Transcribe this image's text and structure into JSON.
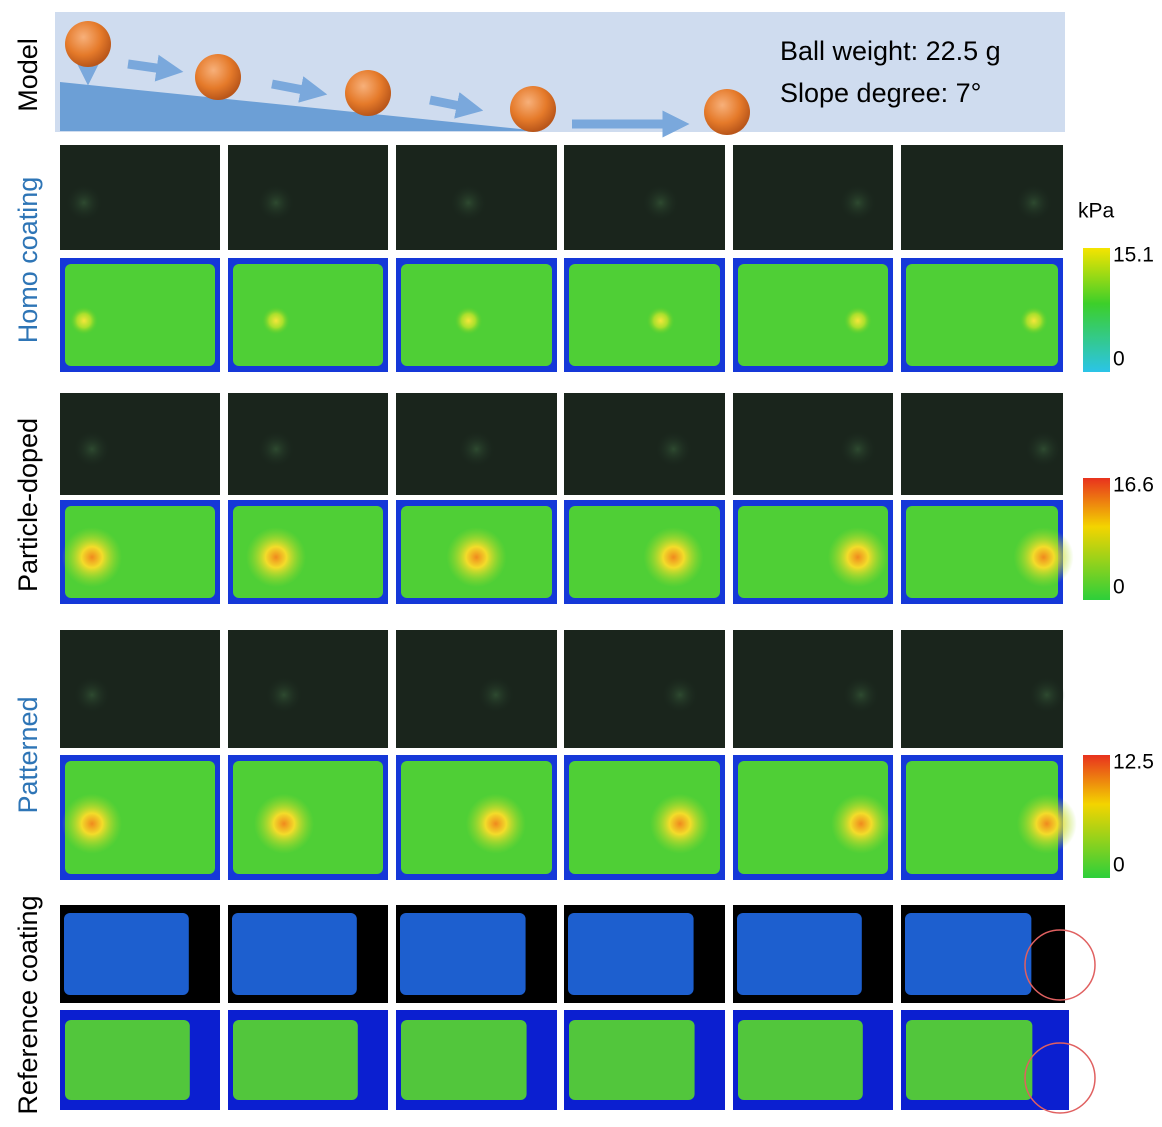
{
  "model": {
    "label": "Model",
    "ball_weight": "Ball weight: 22.5 g",
    "slope_degree": "Slope degree: 7°"
  },
  "unit": "kPa",
  "rows": [
    {
      "label": "Homo coating",
      "colorbar": {
        "max": 15.1,
        "min": 0
      }
    },
    {
      "label": "Particle-doped",
      "colorbar": {
        "max": 16.6,
        "min": 0
      }
    },
    {
      "label": "Patterned",
      "colorbar": {
        "max": 12.5,
        "min": 0
      }
    },
    {
      "label": "Reference coating"
    }
  ]
}
